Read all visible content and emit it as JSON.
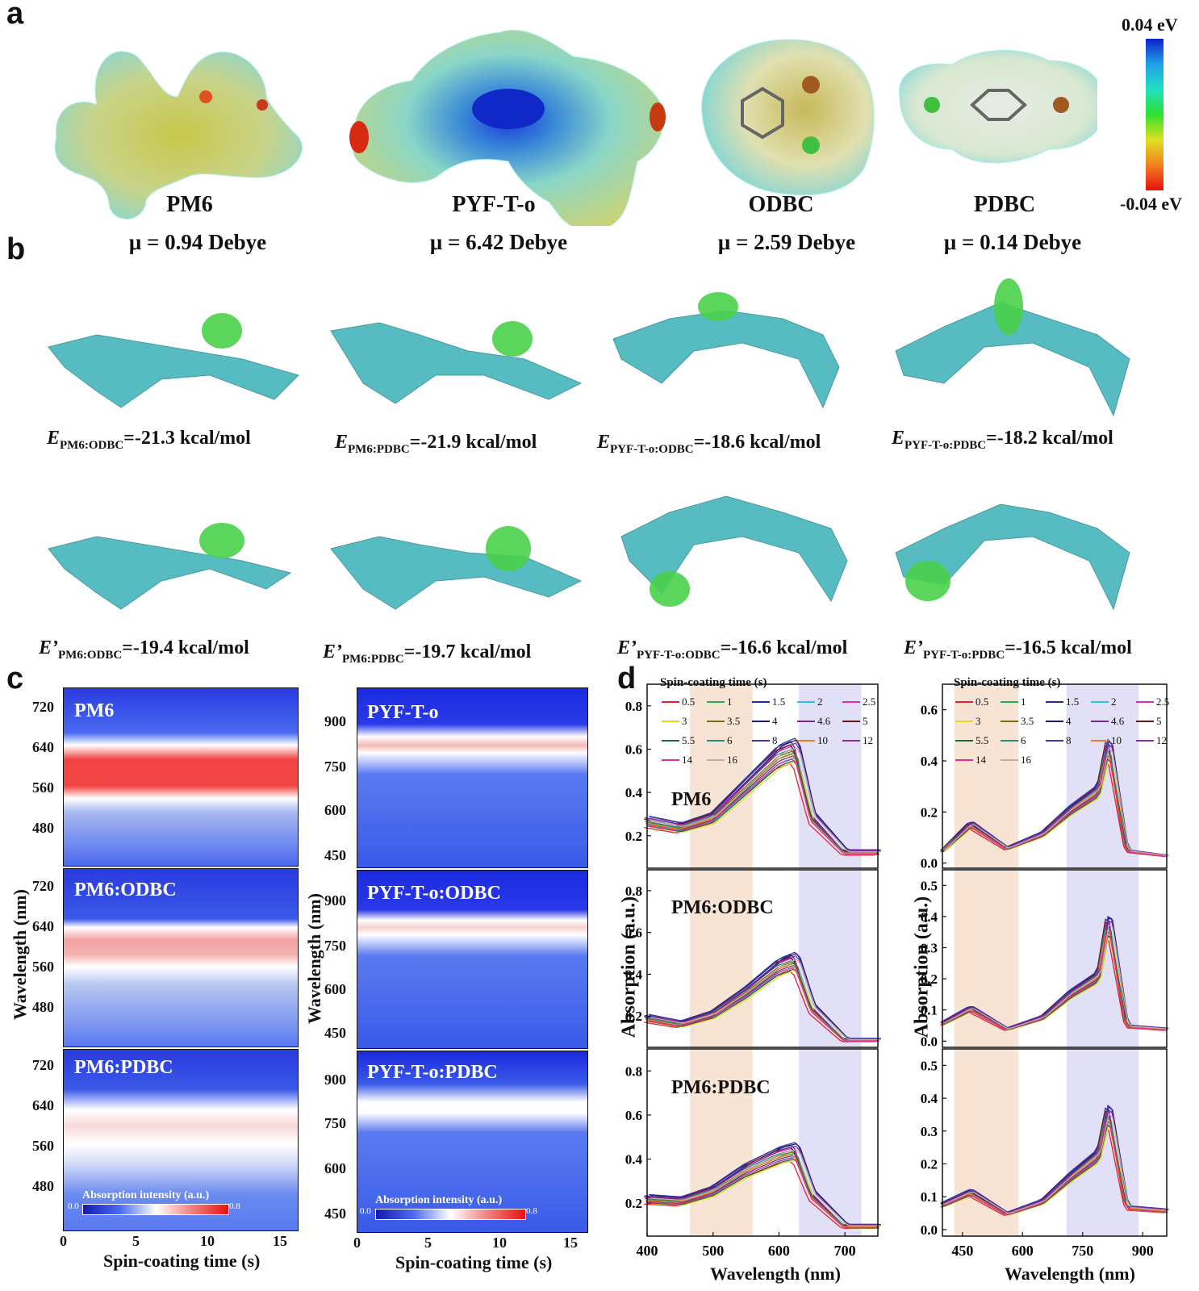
{
  "panels": {
    "a": "a",
    "b": "b",
    "c": "c",
    "d": "d"
  },
  "panel_a": {
    "molecules": [
      {
        "name": "PM6",
        "mu": "μ = 0.94 Debye"
      },
      {
        "name": "PYF-T-o",
        "mu": "μ = 6.42 Debye"
      },
      {
        "name": "ODBC",
        "mu": "μ = 2.59 Debye"
      },
      {
        "name": "PDBC",
        "mu": "μ = 0.14 Debye"
      }
    ],
    "colorbar": {
      "max": "0.04 eV",
      "min": "-0.04 eV"
    }
  },
  "panel_b": {
    "row1": [
      {
        "sym": "E",
        "sub": "PM6:ODBC",
        "value": "=-21.3 kcal/mol"
      },
      {
        "sym": "E",
        "sub": "PM6:PDBC",
        "value": "=-21.9 kcal/mol"
      },
      {
        "sym": "E",
        "sub": "PYF-T-o:ODBC",
        "value": "=-18.6 kcal/mol"
      },
      {
        "sym": "E",
        "sub": "PYF-T-o:PDBC",
        "value": "=-18.2 kcal/mol"
      }
    ],
    "row2": [
      {
        "sym": "E’",
        "sub": "PM6:ODBC",
        "value": "=-19.4 kcal/mol"
      },
      {
        "sym": "E’",
        "sub": "PM6:PDBC",
        "value": "=-19.7 kcal/mol"
      },
      {
        "sym": "E’",
        "sub": "PYF-T-o:ODBC",
        "value": "=-16.6 kcal/mol"
      },
      {
        "sym": "E’",
        "sub": "PYF-T-o:PDBC",
        "value": "=-16.5 kcal/mol"
      }
    ]
  },
  "panel_c": {
    "left_titles": [
      "PM6",
      "PM6:ODBC",
      "PM6:PDBC"
    ],
    "right_titles": [
      "PYF-T-o",
      "PYF-T-o:ODBC",
      "PYF-T-o:PDBC"
    ],
    "left_yticks": [
      "720",
      "640",
      "560",
      "480"
    ],
    "right_yticks": [
      "900",
      "750",
      "600",
      "450"
    ],
    "xticks": [
      "0",
      "5",
      "10",
      "15"
    ],
    "xlabel": "Spin-coating time (s)",
    "ylabel": "Wavelength (nm)",
    "colorbar_label": "Absorption intensity (a.u.)",
    "colorbar_min": "0.0",
    "colorbar_max": "0.8"
  },
  "panel_d": {
    "legend_title": "Spin-coating time (s)",
    "legend": [
      {
        "label": "0.5",
        "color": "#e8202a"
      },
      {
        "label": "1",
        "color": "#22b24c"
      },
      {
        "label": "1.5",
        "color": "#1c2fa8"
      },
      {
        "label": "2",
        "color": "#2bc4e8"
      },
      {
        "label": "2.5",
        "color": "#e02ac0"
      },
      {
        "label": "3",
        "color": "#e8d820"
      },
      {
        "label": "3.5",
        "color": "#7a6a10"
      },
      {
        "label": "4",
        "color": "#1a1a70"
      },
      {
        "label": "4.6",
        "color": "#7a2a8a"
      },
      {
        "label": "5",
        "color": "#6a1a1a"
      },
      {
        "label": "5.5",
        "color": "#1e6a3a"
      },
      {
        "label": "6",
        "color": "#2a8a8a"
      },
      {
        "label": "8",
        "color": "#3a3aa0"
      },
      {
        "label": "10",
        "color": "#e88020"
      },
      {
        "label": "12",
        "color": "#8a2aa0"
      },
      {
        "label": "14",
        "color": "#e0308a"
      },
      {
        "label": "16",
        "color": "#c8a8a8"
      }
    ],
    "left_titles": [
      "PM6",
      "PM6:ODBC",
      "PM6:PDBC"
    ],
    "left_yticks": [
      [
        "0.2",
        "0.4",
        "0.6",
        "0.8"
      ],
      [
        "0.2",
        "0.4",
        "0.6",
        "0.8"
      ],
      [
        "0.2",
        "0.4",
        "0.6",
        "0.8"
      ]
    ],
    "right_yticks": [
      [
        "0.0",
        "0.2",
        "0.4",
        "0.6"
      ],
      [
        "0.0",
        "0.1",
        "0.2",
        "0.3",
        "0.4",
        "0.5"
      ],
      [
        "0.0",
        "0.1",
        "0.2",
        "0.3",
        "0.4",
        "0.5"
      ]
    ],
    "left_xticks": [
      "400",
      "500",
      "600",
      "700"
    ],
    "right_xticks": [
      "450",
      "600",
      "750",
      "900"
    ],
    "xlabel": "Wavelength (nm)",
    "ylabel": "Absorption (a.u.)",
    "colors": {
      "orange_band": "#f8e4d4",
      "purple_band": "#e2e0f6"
    }
  },
  "chart_data": [
    {
      "type": "line",
      "title": "PM6",
      "xlabel": "Wavelength (nm)",
      "ylabel": "Absorption (a.u.)",
      "xlim": [
        400,
        750
      ],
      "ylim": [
        0.05,
        0.9
      ],
      "series": [
        {
          "name": "0.5",
          "x": [
            400,
            450,
            500,
            550,
            600,
            625,
            650,
            700,
            750
          ],
          "y": [
            0.28,
            0.25,
            0.3,
            0.45,
            0.6,
            0.63,
            0.3,
            0.13,
            0.13
          ]
        }
      ]
    },
    {
      "type": "line",
      "title": "PM6:ODBC",
      "xlabel": "Wavelength (nm)",
      "ylabel": "Absorption (a.u.)",
      "xlim": [
        400,
        750
      ],
      "ylim": [
        0.05,
        0.9
      ],
      "series": [
        {
          "name": "0.5",
          "x": [
            400,
            450,
            500,
            550,
            600,
            625,
            650,
            700,
            750
          ],
          "y": [
            0.2,
            0.17,
            0.22,
            0.33,
            0.46,
            0.49,
            0.25,
            0.09,
            0.09
          ]
        }
      ]
    },
    {
      "type": "line",
      "title": "PM6:PDBC",
      "xlabel": "Wavelength (nm)",
      "ylabel": "Absorption (a.u.)",
      "xlim": [
        400,
        750
      ],
      "ylim": [
        0.05,
        0.9
      ],
      "series": [
        {
          "name": "0.5",
          "x": [
            400,
            450,
            500,
            550,
            600,
            625,
            650,
            700,
            750
          ],
          "y": [
            0.23,
            0.22,
            0.27,
            0.37,
            0.44,
            0.46,
            0.25,
            0.1,
            0.1
          ]
        }
      ]
    },
    {
      "type": "line",
      "title": "",
      "xlabel": "Wavelength (nm)",
      "ylabel": "Absorption (a.u.)",
      "xlim": [
        400,
        960
      ],
      "ylim": [
        -0.02,
        0.7
      ],
      "series": [
        {
          "name": "0.5",
          "x": [
            400,
            470,
            560,
            650,
            720,
            790,
            815,
            860,
            960
          ],
          "y": [
            0.05,
            0.16,
            0.06,
            0.12,
            0.22,
            0.3,
            0.5,
            0.05,
            0.03
          ]
        }
      ]
    },
    {
      "type": "line",
      "title": "",
      "xlabel": "Wavelength (nm)",
      "ylabel": "Absorption (a.u.)",
      "xlim": [
        400,
        960
      ],
      "ylim": [
        -0.02,
        0.55
      ],
      "series": [
        {
          "name": "0.5",
          "x": [
            400,
            470,
            560,
            650,
            720,
            790,
            815,
            860,
            960
          ],
          "y": [
            0.06,
            0.11,
            0.04,
            0.08,
            0.16,
            0.22,
            0.42,
            0.05,
            0.04
          ]
        }
      ]
    },
    {
      "type": "line",
      "title": "",
      "xlabel": "Wavelength (nm)",
      "ylabel": "Absorption (a.u.)",
      "xlim": [
        400,
        960
      ],
      "ylim": [
        -0.02,
        0.55
      ],
      "series": [
        {
          "name": "0.5",
          "x": [
            400,
            470,
            560,
            650,
            720,
            790,
            815,
            860,
            960
          ],
          "y": [
            0.08,
            0.12,
            0.05,
            0.09,
            0.17,
            0.24,
            0.39,
            0.07,
            0.06
          ]
        }
      ]
    }
  ]
}
